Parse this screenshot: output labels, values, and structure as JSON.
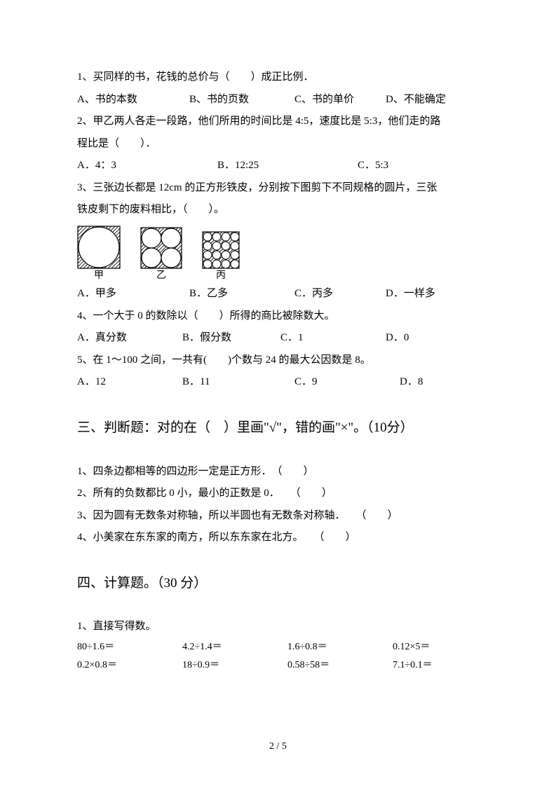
{
  "q1": {
    "text": "1、买同样的书，花钱的总价与（　　）成正比例．",
    "opts": {
      "a": "A、书的本数",
      "b": "B、书的页数",
      "c": "C、书的单价",
      "d": "D、不能确定"
    },
    "optWidths": [
      "160px",
      "150px",
      "130px",
      "auto"
    ]
  },
  "q2": {
    "l1": "2、甲乙两人各走一段路，他们所用的时间比是 4:5，速度比是 5:3，他们走的路",
    "l2": "程比是（　　）．",
    "opts": {
      "a": "A．4：3",
      "b": "B．12:25",
      "c": "C．5:3"
    },
    "optWidths": [
      "200px",
      "200px",
      "auto"
    ]
  },
  "q3": {
    "l1": "3、三张边长都是 12cm 的正方形铁皮，分别按下图剪下不同规格的圆片，三张",
    "l2": "铁皮剩下的废料相比，（　　）。",
    "labels": {
      "a": "甲",
      "b": "乙",
      "c": "丙"
    },
    "opts": {
      "a": "A．甲多",
      "b": "B．乙多",
      "c": "C．丙多",
      "d": "D．一样多"
    },
    "optWidths": [
      "160px",
      "150px",
      "130px",
      "auto"
    ]
  },
  "q4": {
    "text": "4、一个大于 0 的数除以（　　）所得的商比被除数大。",
    "opts": {
      "a": "A．真分数",
      "b": "B．假分数",
      "c": "C．1",
      "d": "D．0"
    },
    "optWidths": [
      "150px",
      "140px",
      "150px",
      "auto"
    ]
  },
  "q5": {
    "text": "5、在 1～100 之间，一共有(　　)个数与 24 的最大公因数是 8。",
    "opts": {
      "a": "A．12",
      "b": "B．11",
      "c": "C．9",
      "d": "D．8"
    },
    "optWidths": [
      "150px",
      "160px",
      "150px",
      "auto"
    ]
  },
  "section3": {
    "title": "三、判断题：对的在（　）里画\"√\"，错的画\"×\"。（10分）"
  },
  "j1": "1、四条边都相等的四边形一定是正方形．　（　　）",
  "j2": "2、所有的负数都比 0 小，最小的正数是 0．　　（　　）",
  "j3": "3、因为圆有无数条对称轴，所以半圆也有无数条对称轴．　　（　　）",
  "j4": "4、小美家在东东家的南方，所以东东家在北方。　　（　　）",
  "section4": {
    "title": "四、计算题。（30 分）"
  },
  "calc": {
    "header": "1、直接写得数。",
    "rows": [
      [
        "80÷1.6＝",
        "4.2÷1.4＝",
        "1.6÷0.8＝",
        "0.12×5＝"
      ],
      [
        "0.2×0.8＝",
        "18÷0.9＝",
        "0.58÷58＝",
        "7.1÷0.1＝"
      ]
    ]
  },
  "footer": "2 / 5",
  "svgStyle": {
    "stroke": "#000",
    "strokeWidth": 1.2,
    "hatchGap": 5,
    "fig1Size": 62,
    "fig2Size": 60,
    "fig3Size": 54
  }
}
